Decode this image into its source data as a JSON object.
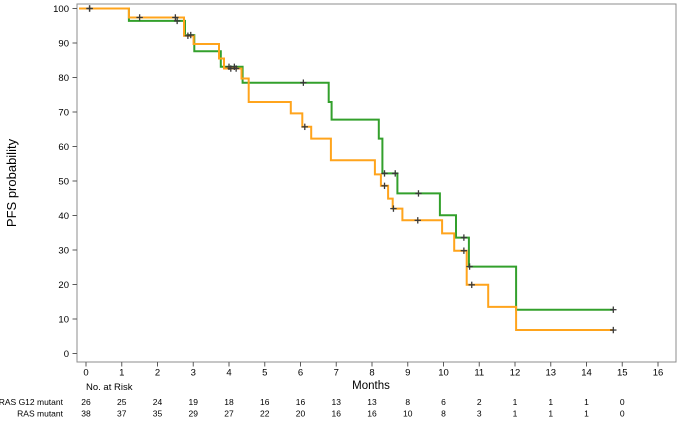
{
  "figure": {
    "y_axis_title": "PFS probability",
    "x_axis_title": "Months",
    "colors": {
      "green": "#33a02c",
      "orange": "#ffa41c",
      "frame": "#8d8d8d",
      "censor": "#3a3a3a"
    }
  },
  "chart_data": {
    "type": "line",
    "subtype": "kaplan-meier-step",
    "title": "",
    "xlabel": "Months",
    "ylabel": "PFS probability",
    "xlim": [
      0,
      16
    ],
    "ylim": [
      0,
      100
    ],
    "x_ticks": [
      0,
      1,
      2,
      3,
      4,
      5,
      6,
      7,
      8,
      9,
      10,
      11,
      12,
      13,
      14,
      15,
      16
    ],
    "y_ticks": [
      0,
      10,
      20,
      30,
      40,
      50,
      60,
      70,
      80,
      90,
      100
    ],
    "grid": false,
    "legend_position": "at-risk-row-labels",
    "series": [
      {
        "name": "RAS G12 mutant",
        "color": "#33a02c",
        "end_time": 14.75,
        "steps": [
          [
            0,
            100
          ],
          [
            1.2,
            96.4
          ],
          [
            2.77,
            92.3
          ],
          [
            3.03,
            87.6
          ],
          [
            3.77,
            83.1
          ],
          [
            4.38,
            78.5
          ],
          [
            6.79,
            72.9
          ],
          [
            6.87,
            67.8
          ],
          [
            8.19,
            62.3
          ],
          [
            8.29,
            52.2
          ],
          [
            8.71,
            46.4
          ],
          [
            9.9,
            40.1
          ],
          [
            10.35,
            33.6
          ],
          [
            10.71,
            25.2
          ],
          [
            12.03,
            12.7
          ]
        ],
        "censors": [
          [
            0.1,
            100
          ],
          [
            2.55,
            96.4
          ],
          [
            2.93,
            92.3
          ],
          [
            4.0,
            83.1
          ],
          [
            4.15,
            83.1
          ],
          [
            6.08,
            78.5
          ],
          [
            8.35,
            52.2
          ],
          [
            8.65,
            52.2
          ],
          [
            9.3,
            46.4
          ],
          [
            10.57,
            33.6
          ],
          [
            10.73,
            25.2
          ],
          [
            14.75,
            12.7
          ]
        ]
      },
      {
        "name": "RAS mutant",
        "color": "#ffa41c",
        "end_time": 14.75,
        "steps": [
          [
            0,
            100
          ],
          [
            1.2,
            97.4
          ],
          [
            2.74,
            92.1
          ],
          [
            3.01,
            89.7
          ],
          [
            3.72,
            85.5
          ],
          [
            3.86,
            82.6
          ],
          [
            4.35,
            79.7
          ],
          [
            4.55,
            72.9
          ],
          [
            5.73,
            69.6
          ],
          [
            6.05,
            65.7
          ],
          [
            6.3,
            62.3
          ],
          [
            6.85,
            56.0
          ],
          [
            8.08,
            51.9
          ],
          [
            8.25,
            48.6
          ],
          [
            8.45,
            44.9
          ],
          [
            8.58,
            42.0
          ],
          [
            8.85,
            38.6
          ],
          [
            9.96,
            34.8
          ],
          [
            10.3,
            29.8
          ],
          [
            10.65,
            19.9
          ],
          [
            11.25,
            13.5
          ],
          [
            12.03,
            6.8
          ]
        ],
        "censors": [
          [
            0.1,
            100
          ],
          [
            1.5,
            97.4
          ],
          [
            2.5,
            97.4
          ],
          [
            2.85,
            92.1
          ],
          [
            4.05,
            82.6
          ],
          [
            4.2,
            82.6
          ],
          [
            6.12,
            65.7
          ],
          [
            8.35,
            48.6
          ],
          [
            8.6,
            42.0
          ],
          [
            9.28,
            38.6
          ],
          [
            10.57,
            29.8
          ],
          [
            10.79,
            19.9
          ],
          [
            14.75,
            6.8
          ]
        ]
      }
    ],
    "at_risk": {
      "title": "No. at Risk",
      "months": [
        0,
        1,
        2,
        3,
        4,
        5,
        6,
        7,
        8,
        9,
        10,
        11,
        12,
        13,
        14,
        15,
        16
      ],
      "rows": [
        {
          "label": "RAS G12 mutant",
          "color": "#33a02c",
          "values": [
            "26",
            "25",
            "24",
            "19",
            "18",
            "16",
            "16",
            "13",
            "13",
            "8",
            "6",
            "2",
            "1",
            "1",
            "1",
            "0",
            ""
          ]
        },
        {
          "label": "RAS mutant",
          "color": "#ffa41c",
          "values": [
            "38",
            "37",
            "35",
            "29",
            "27",
            "22",
            "20",
            "16",
            "16",
            "10",
            "8",
            "3",
            "1",
            "1",
            "1",
            "0",
            ""
          ]
        }
      ]
    }
  }
}
